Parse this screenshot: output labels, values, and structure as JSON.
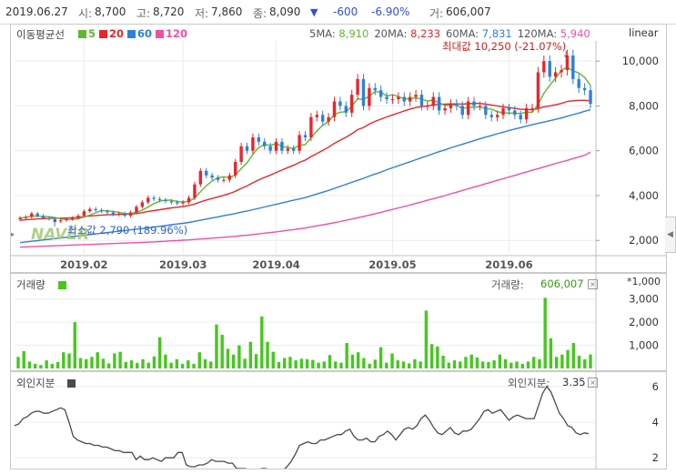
{
  "header": {
    "date": "2019.06.27",
    "open_label": "시:",
    "open": "8,700",
    "high_label": "고:",
    "high": "8,720",
    "low_label": "저:",
    "low": "7,860",
    "close_label": "종:",
    "close": "8,090",
    "change_arrow": "▼",
    "change": "-600",
    "change_pct": "-6.90%",
    "volume_label": "거:",
    "volume": "606,007"
  },
  "colors": {
    "up": "#e8262c",
    "down": "#2f7fd8",
    "ma5": "#5cb82e",
    "ma20": "#e8262c",
    "ma60": "#2f7fd8",
    "ma120": "#ef4fa6",
    "volume": "#45c81e",
    "foreign": "#4a4a4a"
  },
  "price_panel": {
    "legend_title": "이동평균선",
    "legend": [
      {
        "label": "5",
        "color": "#5cb82e"
      },
      {
        "label": "20",
        "color": "#e8262c"
      },
      {
        "label": "60",
        "color": "#2f7fd8"
      },
      {
        "label": "120",
        "color": "#ef4fa6"
      }
    ],
    "ma_values": [
      {
        "label": "5MA:",
        "value": "8,910",
        "color": "#5cb82e"
      },
      {
        "label": "20MA:",
        "value": "8,233",
        "color": "#e8262c"
      },
      {
        "label": "60MA:",
        "value": "7,831",
        "color": "#2f7fd8"
      },
      {
        "label": "120MA:",
        "value": "5,940",
        "color": "#ef4fa6"
      }
    ],
    "scale_label": "linear",
    "max_annotation": "최대값 10,250 (-21.07%)",
    "min_annotation": "최소값 2,790 (189.96%)",
    "watermark": "NAVER",
    "y_ticks": [
      "10,000",
      "8,000",
      "6,000",
      "4,000",
      "2,000"
    ],
    "x_ticks": [
      "2019.02",
      "2019.03",
      "2019.04",
      "2019.05",
      "2019.06"
    ]
  },
  "volume_panel": {
    "title": "거래량",
    "unit": "*1,000",
    "current_label": "거래량:",
    "current_value": "606,007",
    "y_ticks": [
      "3,000",
      "2,000",
      "1,000"
    ]
  },
  "foreign_panel": {
    "title": "외인지분",
    "current_label": "외인지분:",
    "current_value": "3.35",
    "y_ticks": [
      "6",
      "4",
      "2"
    ]
  },
  "chart_data": [
    {
      "type": "candlestick",
      "title": "",
      "ylim": [
        1400,
        10900
      ],
      "x_ticks": [
        "2019.02",
        "2019.03",
        "2019.04",
        "2019.05",
        "2019.06"
      ],
      "y_ticks": [
        10000,
        8000,
        6000,
        4000,
        2000
      ],
      "close": [
        3000,
        3050,
        3200,
        3100,
        3000,
        2950,
        2850,
        2900,
        2950,
        3000,
        3100,
        3300,
        3400,
        3350,
        3300,
        3250,
        3150,
        3200,
        3100,
        3250,
        3500,
        3700,
        3900,
        3850,
        3800,
        3750,
        3700,
        3650,
        3700,
        3900,
        4500,
        5100,
        4900,
        4800,
        4700,
        4700,
        4900,
        5500,
        6200,
        6000,
        6600,
        6400,
        6200,
        6000,
        6400,
        6000,
        6100,
        6000,
        6700,
        6600,
        7500,
        7600,
        7300,
        7500,
        8200,
        8000,
        7700,
        8500,
        9200,
        8000,
        8800,
        8700,
        8400,
        8300,
        8300,
        8400,
        8200,
        8400,
        8500,
        8000,
        8000,
        8400,
        7800,
        7900,
        8100,
        8000,
        7600,
        8200,
        8000,
        8000,
        7600,
        7500,
        7600,
        7900,
        7800,
        7600,
        7400,
        7900,
        7900,
        9500,
        10000,
        9300,
        9500,
        9600,
        10250,
        9200,
        8800,
        8700,
        8090
      ],
      "ma5": [
        3000,
        3020,
        3080,
        3090,
        3070,
        3060,
        3020,
        2960,
        2930,
        2930,
        2960,
        3050,
        3130,
        3230,
        3330,
        3320,
        3290,
        3250,
        3200,
        3190,
        3260,
        3350,
        3490,
        3640,
        3750,
        3800,
        3790,
        3740,
        3710,
        3740,
        3890,
        4170,
        4440,
        4650,
        4800,
        4840,
        4800,
        4920,
        5200,
        5460,
        5840,
        6140,
        6280,
        6240,
        6320,
        6200,
        6140,
        6100,
        6240,
        6280,
        6580,
        6880,
        7140,
        7300,
        7620,
        7720,
        7740,
        7980,
        8320,
        8280,
        8440,
        8640,
        8620,
        8440,
        8500,
        8420,
        8320,
        8320,
        8360,
        8300,
        8220,
        8260,
        8140,
        8020,
        8040,
        8040,
        7880,
        7940,
        7940,
        7960,
        7880,
        7860,
        7740,
        7700,
        7680,
        7680,
        7660,
        7720,
        7720,
        8060,
        8560,
        8920,
        9240,
        9580,
        9730,
        9570,
        9470,
        9270,
        8910
      ],
      "ma20": [
        2900,
        2920,
        2940,
        2960,
        2970,
        2980,
        2990,
        2990,
        3000,
        3010,
        3030,
        3060,
        3090,
        3110,
        3130,
        3140,
        3150,
        3160,
        3160,
        3170,
        3200,
        3240,
        3290,
        3330,
        3370,
        3410,
        3450,
        3480,
        3510,
        3550,
        3620,
        3720,
        3800,
        3870,
        3940,
        4010,
        4090,
        4190,
        4320,
        4430,
        4570,
        4700,
        4810,
        4910,
        5030,
        5140,
        5250,
        5350,
        5480,
        5580,
        5740,
        5880,
        6010,
        6160,
        6330,
        6470,
        6600,
        6760,
        6940,
        7040,
        7190,
        7310,
        7410,
        7510,
        7600,
        7690,
        7780,
        7860,
        7930,
        7970,
        8000,
        8050,
        8070,
        8080,
        8090,
        8090,
        8080,
        8100,
        8110,
        8110,
        8080,
        8040,
        8000,
        7960,
        7930,
        7890,
        7850,
        7840,
        7830,
        7880,
        7960,
        8000,
        8050,
        8110,
        8200,
        8230,
        8250,
        8250,
        8233
      ],
      "ma60": [
        1900,
        1930,
        1960,
        1990,
        2020,
        2050,
        2080,
        2110,
        2140,
        2170,
        2200,
        2230,
        2260,
        2290,
        2320,
        2350,
        2380,
        2410,
        2440,
        2470,
        2500,
        2530,
        2560,
        2590,
        2630,
        2660,
        2700,
        2730,
        2760,
        2800,
        2850,
        2900,
        2950,
        3000,
        3050,
        3100,
        3150,
        3200,
        3260,
        3310,
        3370,
        3430,
        3490,
        3550,
        3610,
        3670,
        3730,
        3790,
        3850,
        3910,
        3990,
        4070,
        4150,
        4230,
        4320,
        4410,
        4500,
        4590,
        4680,
        4770,
        4870,
        4960,
        5050,
        5150,
        5240,
        5330,
        5420,
        5510,
        5600,
        5690,
        5780,
        5870,
        5960,
        6040,
        6130,
        6210,
        6290,
        6370,
        6450,
        6530,
        6610,
        6680,
        6760,
        6830,
        6900,
        6970,
        7030,
        7100,
        7160,
        7220,
        7280,
        7340,
        7400,
        7460,
        7540,
        7610,
        7680,
        7760,
        7831
      ],
      "ma120": [
        1700,
        1710,
        1720,
        1730,
        1740,
        1750,
        1760,
        1770,
        1780,
        1790,
        1800,
        1810,
        1820,
        1830,
        1840,
        1850,
        1860,
        1870,
        1880,
        1890,
        1900,
        1910,
        1920,
        1930,
        1950,
        1960,
        1980,
        1990,
        2010,
        2020,
        2040,
        2060,
        2080,
        2100,
        2120,
        2140,
        2160,
        2180,
        2210,
        2230,
        2260,
        2290,
        2320,
        2350,
        2380,
        2410,
        2450,
        2480,
        2520,
        2550,
        2600,
        2650,
        2690,
        2740,
        2790,
        2840,
        2900,
        2950,
        3010,
        3070,
        3130,
        3190,
        3250,
        3320,
        3380,
        3450,
        3510,
        3580,
        3650,
        3720,
        3790,
        3860,
        3930,
        4000,
        4080,
        4150,
        4230,
        4300,
        4380,
        4450,
        4530,
        4600,
        4680,
        4750,
        4830,
        4900,
        4980,
        5050,
        5130,
        5200,
        5280,
        5350,
        5430,
        5500,
        5570,
        5650,
        5720,
        5800,
        5940
      ]
    },
    {
      "type": "bar",
      "title": "",
      "ylabel": "거래량 (*1,000)",
      "ylim": [
        0,
        3300
      ],
      "y_ticks": [
        3000,
        2000,
        1000
      ],
      "values": [
        500,
        750,
        300,
        200,
        150,
        350,
        200,
        280,
        700,
        650,
        2000,
        450,
        400,
        500,
        700,
        420,
        220,
        650,
        720,
        280,
        350,
        240,
        400,
        250,
        520,
        1350,
        600,
        250,
        400,
        200,
        350,
        200,
        700,
        400,
        300,
        1900,
        1450,
        850,
        600,
        1000,
        420,
        1150,
        620,
        2250,
        1150,
        720,
        280,
        450,
        500,
        350,
        420,
        400,
        370,
        250,
        300,
        580,
        300,
        250,
        1100,
        600,
        700,
        450,
        200,
        380,
        920,
        250,
        650,
        350,
        300,
        220,
        400,
        300,
        2500,
        1050,
        950,
        550,
        250,
        350,
        300,
        500,
        600,
        470,
        300,
        280,
        350,
        600,
        400,
        250,
        300,
        200,
        300,
        500,
        400,
        3050,
        1300,
        500,
        600,
        800,
        1100,
        550,
        400,
        606
      ]
    },
    {
      "type": "line",
      "title": "",
      "ylabel": "외인지분",
      "ylim": [
        1.5,
        6.5
      ],
      "y_ticks": [
        6,
        4,
        2
      ],
      "values": [
        3.8,
        3.9,
        4.2,
        4.3,
        4.5,
        4.6,
        4.6,
        4.5,
        4.5,
        4.6,
        4.7,
        4.8,
        4.7,
        4.0,
        3.2,
        3.0,
        2.9,
        2.8,
        2.8,
        2.7,
        2.7,
        2.6,
        2.6,
        2.5,
        2.4,
        2.4,
        2.3,
        2.3,
        2.3,
        1.9,
        2.1,
        1.9,
        1.9,
        2.0,
        1.9,
        1.8,
        2.0,
        2.0,
        2.0,
        2.3,
        2.3,
        1.6,
        1.5,
        1.5,
        1.6,
        1.6,
        1.7,
        1.9,
        1.8,
        1.8,
        1.8,
        1.7,
        1.7,
        1.4,
        1.4,
        1.4,
        1.3,
        1.3,
        1.3,
        1.4,
        1.4,
        1.3,
        1.3,
        1.2,
        1.3,
        1.5,
        1.8,
        2.2,
        2.7,
        2.8,
        2.9,
        2.8,
        2.8,
        3.0,
        3.0,
        3.1,
        3.2,
        3.3,
        3.3,
        3.5,
        3.6,
        3.2,
        3.0,
        3.0,
        3.1,
        2.9,
        2.9,
        3.2,
        3.3,
        3.5,
        3.3,
        3.0,
        3.3,
        3.6,
        3.7,
        3.6,
        3.8,
        4.2,
        4.4,
        4.1,
        3.7,
        3.4,
        3.3,
        3.5,
        3.7,
        3.4,
        3.3,
        3.5,
        3.5,
        3.6,
        3.9,
        4.2,
        4.6,
        4.7,
        4.5,
        4.6,
        4.7,
        4.4,
        4.1,
        4.3,
        4.4,
        4.3,
        4.2,
        4.2,
        4.2,
        4.9,
        5.6,
        6.0,
        5.7,
        5.1,
        4.5,
        4.2,
        3.8,
        3.7,
        3.4,
        3.3,
        3.4,
        3.35
      ]
    }
  ]
}
